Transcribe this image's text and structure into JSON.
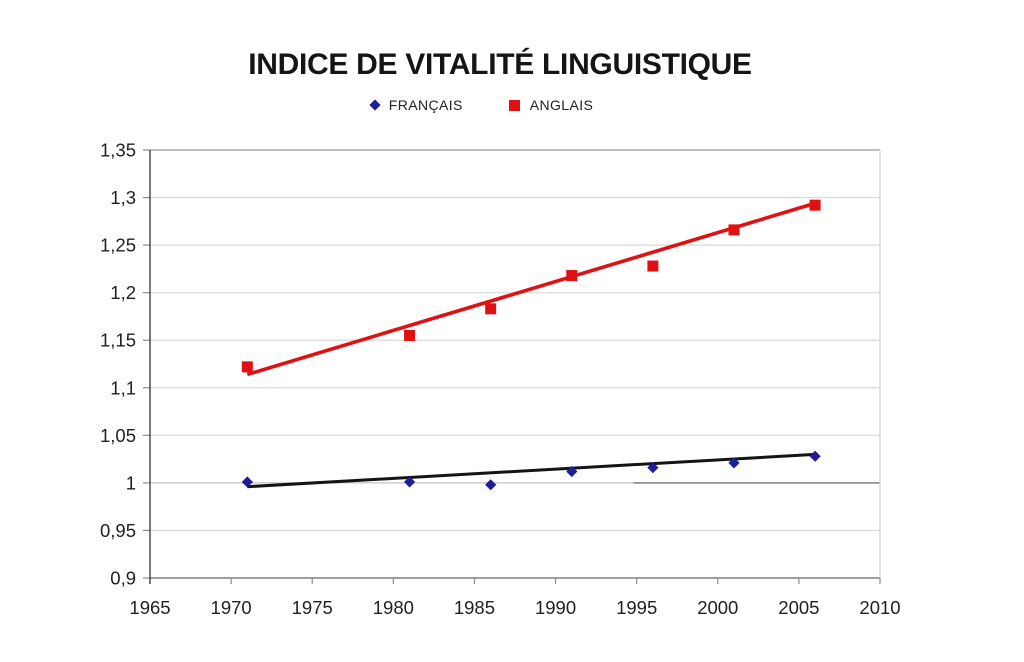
{
  "title": "INDICE DE VITALITÉ LINGUISTIQUE",
  "legend": {
    "items": [
      {
        "label": "FRANÇAIS",
        "marker": "diamond",
        "color": "#1e1e96"
      },
      {
        "label": "ANGLAIS",
        "marker": "square",
        "color": "#e01112"
      }
    ]
  },
  "chart_data": {
    "type": "scatter",
    "title": "INDICE DE VITALITÉ LINGUISTIQUE",
    "x": [
      1971,
      1981,
      1986,
      1991,
      1996,
      2001,
      2006
    ],
    "series": [
      {
        "name": "FRANÇAIS",
        "marker": "diamond",
        "color": "#1e1e96",
        "values": [
          1.001,
          1.001,
          0.998,
          1.012,
          1.016,
          1.021,
          1.028
        ],
        "trendline": {
          "color": "#141414",
          "width": 3,
          "from": [
            1971,
            0.996
          ],
          "to": [
            2006,
            1.03
          ]
        }
      },
      {
        "name": "ANGLAIS",
        "marker": "square",
        "color": "#e01112",
        "values": [
          1.122,
          1.155,
          1.183,
          1.218,
          1.228,
          1.266,
          1.292
        ],
        "trendline": {
          "color": "#e01112",
          "width": 3.6,
          "from": [
            1971,
            1.114
          ],
          "to": [
            2006,
            1.294
          ]
        }
      }
    ],
    "xlim": [
      1965,
      2010
    ],
    "ylim": [
      0.9,
      1.35
    ],
    "x_ticks": [
      {
        "value": 1965,
        "label": "1965"
      },
      {
        "value": 1970,
        "label": "1970"
      },
      {
        "value": 1975,
        "label": "1975"
      },
      {
        "value": 1980,
        "label": "1980"
      },
      {
        "value": 1985,
        "label": "1985"
      },
      {
        "value": 1990,
        "label": "1990"
      },
      {
        "value": 1995,
        "label": "1995"
      },
      {
        "value": 2000,
        "label": "2000"
      },
      {
        "value": 2005,
        "label": "2005"
      },
      {
        "value": 2010,
        "label": "2010"
      }
    ],
    "y_ticks": [
      {
        "value": 1.35,
        "label": "1,35"
      },
      {
        "value": 1.3,
        "label": "1,3"
      },
      {
        "value": 1.25,
        "label": "1,25"
      },
      {
        "value": 1.2,
        "label": "1,2"
      },
      {
        "value": 1.15,
        "label": "1,15"
      },
      {
        "value": 1.1,
        "label": "1,1"
      },
      {
        "value": 1.05,
        "label": "1,05"
      },
      {
        "value": 1.0,
        "label": "1"
      },
      {
        "value": 0.95,
        "label": "0,95"
      },
      {
        "value": 0.9,
        "label": "0,9"
      }
    ],
    "grid": true,
    "legend_position": "top",
    "colors": {
      "gridline": "#d9d9d9",
      "top_border": "#999999",
      "right_border": "#d0d0d0",
      "bottom_axis": "#7f7f7f",
      "left_axis": "#4d4d4d",
      "tick": "#8c8c8c",
      "tick_label": "#1f1f1f",
      "baseline": "#c4c4c4",
      "baseline_dark": "#8a8a8a"
    },
    "baseline_dark_segment": {
      "y": 1.0,
      "x1": 1994.8,
      "x2": 2010
    }
  }
}
